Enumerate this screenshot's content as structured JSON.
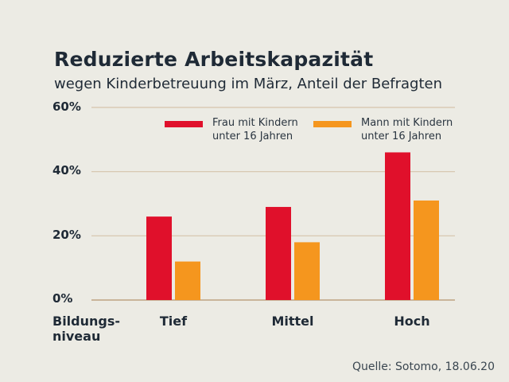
{
  "chart_data": {
    "type": "bar",
    "title": "Reduzierte Arbeitskapazität",
    "subtitle": "wegen Kinderbetreuung im März, Anteil der Befragten",
    "xlabel": "Bildungs-\nniveau",
    "ylabel": "",
    "categories": [
      "Tief",
      "Mittel",
      "Hoch"
    ],
    "series": [
      {
        "name": "Frau mit Kindern\nunter 16 Jahren",
        "color": "#e0102b",
        "values": [
          26,
          29,
          46
        ]
      },
      {
        "name": "Mann mit Kindern\nunter 16 Jahren",
        "color": "#f5961e",
        "values": [
          12,
          18,
          31
        ]
      }
    ],
    "ylim": [
      0,
      60
    ],
    "yticks": [
      0,
      20,
      40,
      60
    ],
    "ytick_labels": [
      "0%",
      "20%",
      "40%",
      "60%"
    ],
    "grid": true,
    "legend": "top-right",
    "source": "Quelle: Sotomo, 18.06.20"
  }
}
